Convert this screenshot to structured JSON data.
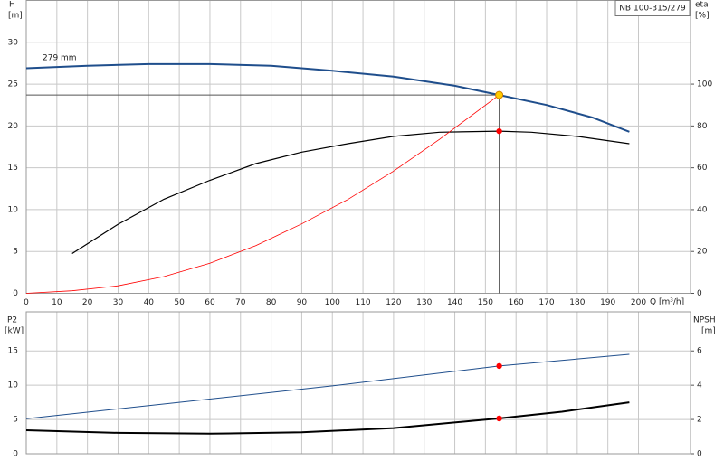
{
  "chart_data": [
    {
      "type": "line",
      "title": "NB 100-315/279",
      "annotation": "279 mm",
      "xlabel": "Q [m³/h]",
      "ylabel": "H",
      "yunit": "[m]",
      "y2label": "eta",
      "y2unit": "[%]",
      "xlim": [
        0,
        217
      ],
      "ylim": [
        0,
        35
      ],
      "y2lim": [
        0,
        140
      ],
      "xticks": [
        0,
        10,
        20,
        30,
        40,
        50,
        60,
        70,
        80,
        90,
        100,
        110,
        120,
        130,
        140,
        150,
        160,
        170,
        180,
        190,
        200
      ],
      "yticks": [
        0,
        5,
        10,
        15,
        20,
        25,
        30
      ],
      "y2ticks": [
        0,
        20,
        40,
        60,
        80,
        100
      ],
      "grid": true,
      "series": [
        {
          "color": "#1f4e8c",
          "width": 2,
          "x": [
            0,
            20,
            40,
            60,
            80,
            100,
            120,
            140,
            154.5,
            170,
            185,
            197
          ],
          "values": [
            26.9,
            27.2,
            27.4,
            27.4,
            27.2,
            26.6,
            25.9,
            24.8,
            23.7,
            22.5,
            21,
            19.3
          ]
        },
        {
          "color": "#000000",
          "width": 1.2,
          "axis": "y2",
          "x": [
            15,
            30,
            45,
            60,
            75,
            90,
            105,
            120,
            135,
            154.5,
            165,
            180,
            197
          ],
          "values": [
            19,
            33,
            45,
            54,
            62,
            67.5,
            71.5,
            75,
            77,
            77.5,
            77,
            75,
            71.5
          ]
        },
        {
          "color": "#ff0000",
          "width": 0.8,
          "x": [
            0,
            15,
            30,
            45,
            60,
            75,
            90,
            105,
            120,
            135,
            154.5
          ],
          "values": [
            0,
            0.3,
            0.9,
            2,
            3.6,
            5.7,
            8.3,
            11.2,
            14.6,
            18.4,
            23.7
          ]
        }
      ],
      "operating_point": {
        "q": 154.5,
        "h": 23.7,
        "eta": 77.5
      }
    },
    {
      "type": "line",
      "ylabel": "P2",
      "yunit": "[kW]",
      "y2label": "NPSH",
      "y2unit": "[m]",
      "xlim": [
        0,
        217
      ],
      "ylim": [
        0,
        20.7
      ],
      "y2lim": [
        0,
        8.28
      ],
      "yticks": [
        0,
        5,
        10,
        15
      ],
      "y2ticks": [
        0,
        2,
        4,
        6
      ],
      "grid": true,
      "series": [
        {
          "color": "#1f4e8c",
          "width": 1,
          "x": [
            0,
            50,
            100,
            154.5,
            197
          ],
          "values": [
            5.1,
            7.5,
            9.9,
            12.8,
            14.5
          ]
        },
        {
          "color": "#000000",
          "width": 2,
          "axis": "y2",
          "x": [
            0,
            30,
            60,
            90,
            120,
            154.5,
            175,
            197
          ],
          "values": [
            1.37,
            1.22,
            1.17,
            1.25,
            1.5,
            2.06,
            2.45,
            3.0
          ]
        }
      ],
      "operating_point": {
        "q": 154.5,
        "p2": 12.8,
        "npsh": 2.06
      }
    }
  ]
}
